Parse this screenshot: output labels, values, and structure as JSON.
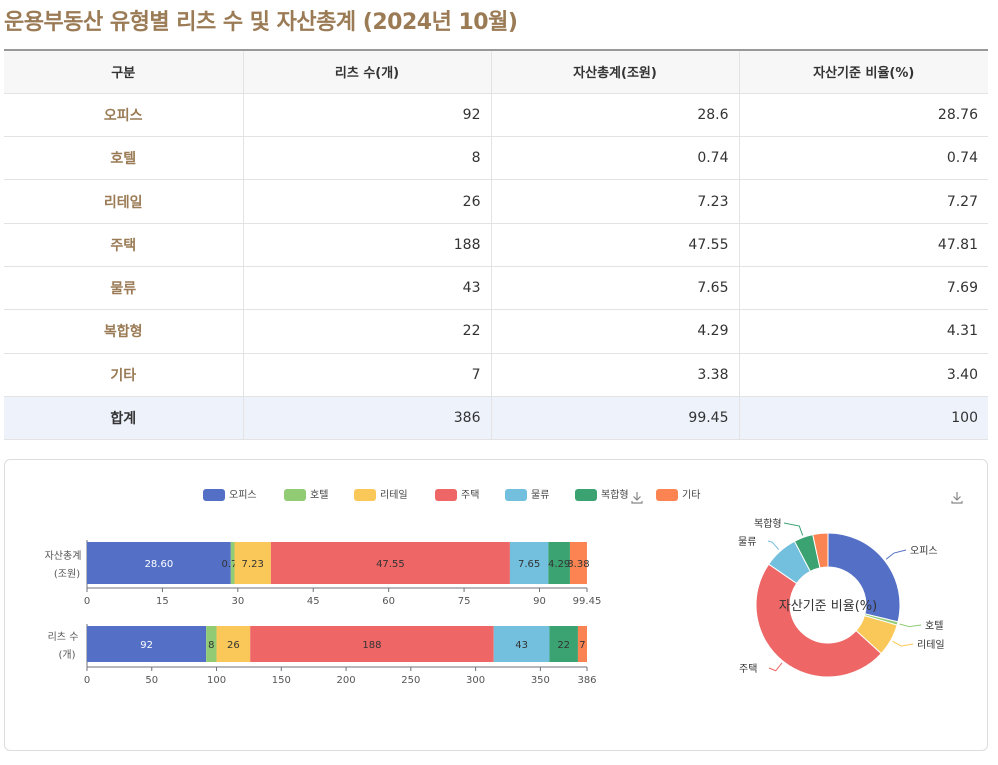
{
  "page": {
    "title": "운용부동산 유형별 리츠 수 및 자산총계 (2024년 10월)"
  },
  "table": {
    "headers": [
      "구분",
      "리츠 수(개)",
      "자산총계(조원)",
      "자산기준 비율(%)"
    ],
    "rows": [
      [
        "오피스",
        "92",
        "28.6",
        "28.76"
      ],
      [
        "호텔",
        "8",
        "0.74",
        "0.74"
      ],
      [
        "리테일",
        "26",
        "7.23",
        "7.27"
      ],
      [
        "주택",
        "188",
        "47.55",
        "47.81"
      ],
      [
        "물류",
        "43",
        "7.65",
        "7.69"
      ],
      [
        "복합형",
        "22",
        "4.29",
        "4.31"
      ],
      [
        "기타",
        "7",
        "3.38",
        "3.40"
      ]
    ],
    "total": [
      "합계",
      "386",
      "99.45",
      "100"
    ]
  },
  "chart_data": [
    {
      "type": "bar",
      "orientation": "horizontal-stacked",
      "legend_position": "top",
      "categories": [
        "자산총계 (조원)",
        "리츠 수 (개)"
      ],
      "series": [
        {
          "name": "오피스",
          "color": "#5470c6",
          "values": [
            28.6,
            92
          ],
          "labels": [
            "28.60",
            "92"
          ]
        },
        {
          "name": "호텔",
          "color": "#91cc75",
          "values": [
            0.74,
            8
          ],
          "labels": [
            "0.74",
            "8"
          ]
        },
        {
          "name": "리테일",
          "color": "#fac858",
          "values": [
            7.23,
            26
          ],
          "labels": [
            "7.23",
            "26"
          ]
        },
        {
          "name": "주택",
          "color": "#ee6666",
          "values": [
            47.55,
            188
          ],
          "labels": [
            "47.55",
            "188"
          ]
        },
        {
          "name": "물류",
          "color": "#73c0de",
          "values": [
            7.65,
            43
          ],
          "labels": [
            "7.65",
            "43"
          ]
        },
        {
          "name": "복합형",
          "color": "#3ba272",
          "values": [
            4.29,
            22
          ],
          "labels": [
            "4.29",
            "22"
          ]
        },
        {
          "name": "기타",
          "color": "#fc8452",
          "values": [
            3.38,
            7
          ],
          "labels": [
            "3.38",
            "7"
          ]
        }
      ],
      "axes": [
        {
          "category": "자산총계 (조원)",
          "xlim": [
            0,
            99.45
          ],
          "ticks": [
            "0",
            "15",
            "30",
            "45",
            "60",
            "75",
            "90",
            "99.45"
          ],
          "tick_values": [
            0,
            15,
            30,
            45,
            60,
            75,
            90,
            99.45
          ]
        },
        {
          "category": "리츠 수 (개)",
          "xlim": [
            0,
            386
          ],
          "ticks": [
            "0",
            "50",
            "100",
            "150",
            "200",
            "250",
            "300",
            "350",
            "386"
          ],
          "tick_values": [
            0,
            50,
            100,
            150,
            200,
            250,
            300,
            350,
            386
          ]
        }
      ],
      "row_labels": [
        [
          "자산총계",
          "(조원)"
        ],
        [
          "리츠 수",
          "(개)"
        ]
      ]
    },
    {
      "type": "pie",
      "variant": "donut",
      "title": "자산기준 비율(%)",
      "slices": [
        {
          "name": "오피스",
          "value": 28.76,
          "color": "#5470c6"
        },
        {
          "name": "호텔",
          "value": 0.74,
          "color": "#91cc75"
        },
        {
          "name": "리테일",
          "value": 7.27,
          "color": "#fac858"
        },
        {
          "name": "주택",
          "value": 47.81,
          "color": "#ee6666"
        },
        {
          "name": "물류",
          "value": 7.69,
          "color": "#73c0de"
        },
        {
          "name": "복합형",
          "value": 4.31,
          "color": "#3ba272"
        },
        {
          "name": "기타",
          "value": 3.4,
          "color": "#fc8452"
        }
      ]
    }
  ],
  "icons": {
    "download_left": "download-icon",
    "download_right": "download-icon"
  }
}
